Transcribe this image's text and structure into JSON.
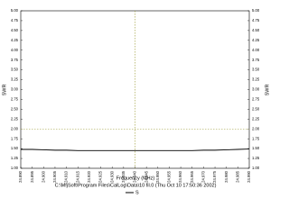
{
  "chart_data": {
    "type": "line",
    "x_label": "Frequency (MHz)",
    "y_label": "SWR",
    "subtitle": "C:\\MfjSoft\\Program Files\\CalLog\\Data\\10 fil.0 (Thu Oct 10 17:50:36 2002)",
    "x": [
      24.89,
      24.895,
      24.9,
      24.905,
      24.91,
      24.915,
      24.92,
      24.925,
      24.93,
      24.935,
      24.94,
      24.945,
      24.95,
      24.955,
      24.96,
      24.965,
      24.97,
      24.975,
      24.98,
      24.985,
      24.99
    ],
    "series": [
      {
        "name": "S",
        "color": "#000000",
        "values": [
          1.48,
          1.48,
          1.47,
          1.46,
          1.46,
          1.45,
          1.45,
          1.45,
          1.45,
          1.45,
          1.45,
          1.45,
          1.45,
          1.45,
          1.45,
          1.45,
          1.46,
          1.46,
          1.47,
          1.48,
          1.49
        ]
      }
    ],
    "xlim": [
      24.89,
      24.99
    ],
    "ylim": [
      1,
      5
    ],
    "xticks": [
      {
        "value": 24.89,
        "label": "24.890"
      },
      24.895,
      {
        "value": 24.9,
        "label": "24.900"
      },
      24.905,
      {
        "value": 24.91,
        "label": "24.910"
      },
      24.915,
      {
        "value": 24.92,
        "label": "24.920"
      },
      24.925,
      {
        "value": 24.93,
        "label": "24.930"
      },
      24.935,
      {
        "value": 24.94,
        "label": "24.940"
      },
      24.945,
      {
        "value": 24.95,
        "label": "24.950"
      },
      24.955,
      {
        "value": 24.96,
        "label": "24.960"
      },
      24.965,
      {
        "value": 24.97,
        "label": "24.970"
      },
      24.975,
      {
        "value": 24.98,
        "label": "24.980"
      },
      24.985,
      {
        "value": 24.99,
        "label": "24.990"
      }
    ],
    "yticks": [
      {
        "value": 1,
        "label": "1.00"
      },
      1.25,
      {
        "value": 1.5,
        "label": "1.50"
      },
      1.75,
      {
        "value": 2,
        "label": "2.00"
      },
      2.25,
      {
        "value": 2.5,
        "label": "2.50"
      },
      2.75,
      {
        "value": 3,
        "label": "3.00"
      },
      3.25,
      {
        "value": 3.5,
        "label": "3.50"
      },
      3.75,
      {
        "value": 4,
        "label": "4.00"
      },
      4.25,
      {
        "value": 4.5,
        "label": "4.50"
      },
      4.75,
      {
        "value": 5,
        "label": "5.00"
      }
    ],
    "ref_x": 24.94,
    "ref_y": 2,
    "ref_color": "#999933"
  }
}
